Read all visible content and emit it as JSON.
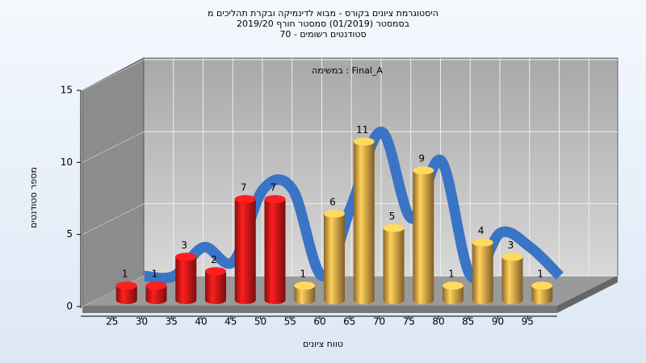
{
  "chart_data": {
    "type": "bar3d",
    "title": "היסטוגרמת ציונים בקורס - מבוא לדינמיקה ובקרת תהליכים מ",
    "subtitle": "בסמסטר  (01/2019)  סמסטר חורף 2019/20",
    "subtitle2": "סטודנטים רשומים - 70",
    "annotation": "במשימה : Final_A",
    "x_label": "טווח ציונים",
    "y_label": "מספר סטודנטים",
    "categories": [
      "25",
      "30",
      "35",
      "40",
      "45",
      "50",
      "55",
      "60",
      "65",
      "70",
      "75",
      "80",
      "85",
      "90",
      "95"
    ],
    "values": [
      1,
      1,
      3,
      2,
      7,
      7,
      1,
      6,
      11,
      5,
      9,
      1,
      4,
      3,
      1
    ],
    "colors": [
      "#e01818",
      "#e01818",
      "#e01818",
      "#e01818",
      "#e01818",
      "#e01818",
      "#e8a848",
      "#e8a848",
      "#e8a848",
      "#e8a848",
      "#e8a848",
      "#e8a848",
      "#e8a848",
      "#e8a848",
      "#e8a848"
    ],
    "trend_color": "#3a74c4",
    "ylim": [
      0,
      15
    ],
    "yticks": [
      0,
      5,
      10,
      15
    ],
    "grid": true
  }
}
